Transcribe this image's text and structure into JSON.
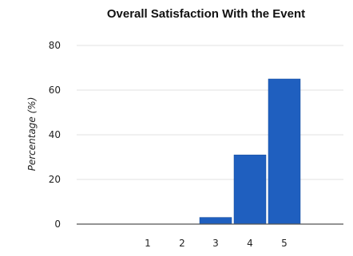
{
  "chart_data": {
    "type": "bar",
    "title": "Overall Satisfaction With the Event",
    "xlabel": "",
    "ylabel": "Percentage (%)",
    "categories": [
      "1",
      "2",
      "3",
      "4",
      "5"
    ],
    "values": [
      0,
      0,
      3,
      31,
      65
    ],
    "ylim": [
      0,
      80
    ],
    "yticks": [
      "0",
      "20",
      "40",
      "60",
      "80"
    ],
    "grid": true,
    "legend": "none",
    "colors": {
      "bar": "#1f5fbf",
      "bar_edge": "#174a99",
      "grid": "#e0e0e0",
      "axis": "#555555"
    }
  }
}
